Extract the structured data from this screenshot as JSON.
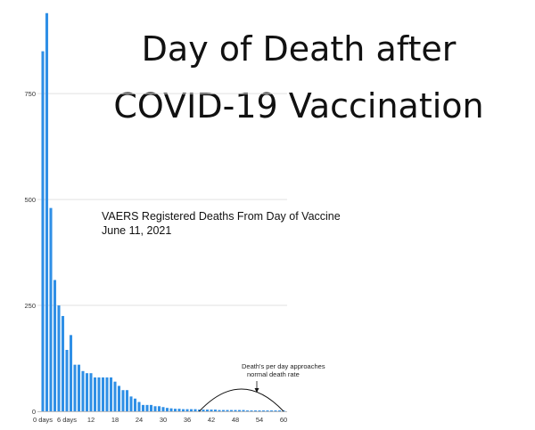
{
  "chart_data": {
    "type": "bar",
    "title_lines": [
      "Day of Death after",
      "COVID-19 Vaccination"
    ],
    "subtitle_lines": [
      "VAERS Registered Deaths From Day of Vaccine",
      "June 11, 2021"
    ],
    "annotation_lines": [
      "Death's per day approaches",
      "normal death rate"
    ],
    "xlabel": "",
    "ylabel": "",
    "ylim": [
      0,
      950
    ],
    "y_ticks": [
      0,
      250,
      500,
      750
    ],
    "x_tick_labels": [
      {
        "x": 0,
        "label": "0 days"
      },
      {
        "x": 6,
        "label": "6 days"
      },
      {
        "x": 12,
        "label": "12"
      },
      {
        "x": 18,
        "label": "18"
      },
      {
        "x": 24,
        "label": "24"
      },
      {
        "x": 30,
        "label": "30"
      },
      {
        "x": 36,
        "label": "36"
      },
      {
        "x": 42,
        "label": "42"
      },
      {
        "x": 48,
        "label": "48"
      },
      {
        "x": 54,
        "label": "54"
      },
      {
        "x": 60,
        "label": "60"
      }
    ],
    "x": [
      0,
      1,
      2,
      3,
      4,
      5,
      6,
      7,
      8,
      9,
      10,
      11,
      12,
      13,
      14,
      15,
      16,
      17,
      18,
      19,
      20,
      21,
      22,
      23,
      24,
      25,
      26,
      27,
      28,
      29,
      30,
      31,
      32,
      33,
      34,
      35,
      36,
      37,
      38,
      39,
      40,
      41,
      42,
      43,
      44,
      45,
      46,
      47,
      48,
      49,
      50,
      51,
      52,
      53,
      54,
      55,
      56,
      57,
      58,
      59,
      60
    ],
    "values": [
      850,
      940,
      480,
      310,
      250,
      225,
      145,
      180,
      110,
      110,
      95,
      90,
      90,
      80,
      80,
      80,
      80,
      80,
      70,
      60,
      50,
      50,
      35,
      30,
      22,
      15,
      15,
      15,
      12,
      12,
      10,
      8,
      7,
      6,
      6,
      5,
      5,
      5,
      5,
      4,
      4,
      4,
      4,
      4,
      3,
      3,
      3,
      3,
      3,
      3,
      3,
      2,
      2,
      2,
      2,
      2,
      2,
      2,
      2,
      2,
      2
    ],
    "annotation_target_x": 54,
    "bar_color": "#2f8fe6",
    "grid": true
  }
}
